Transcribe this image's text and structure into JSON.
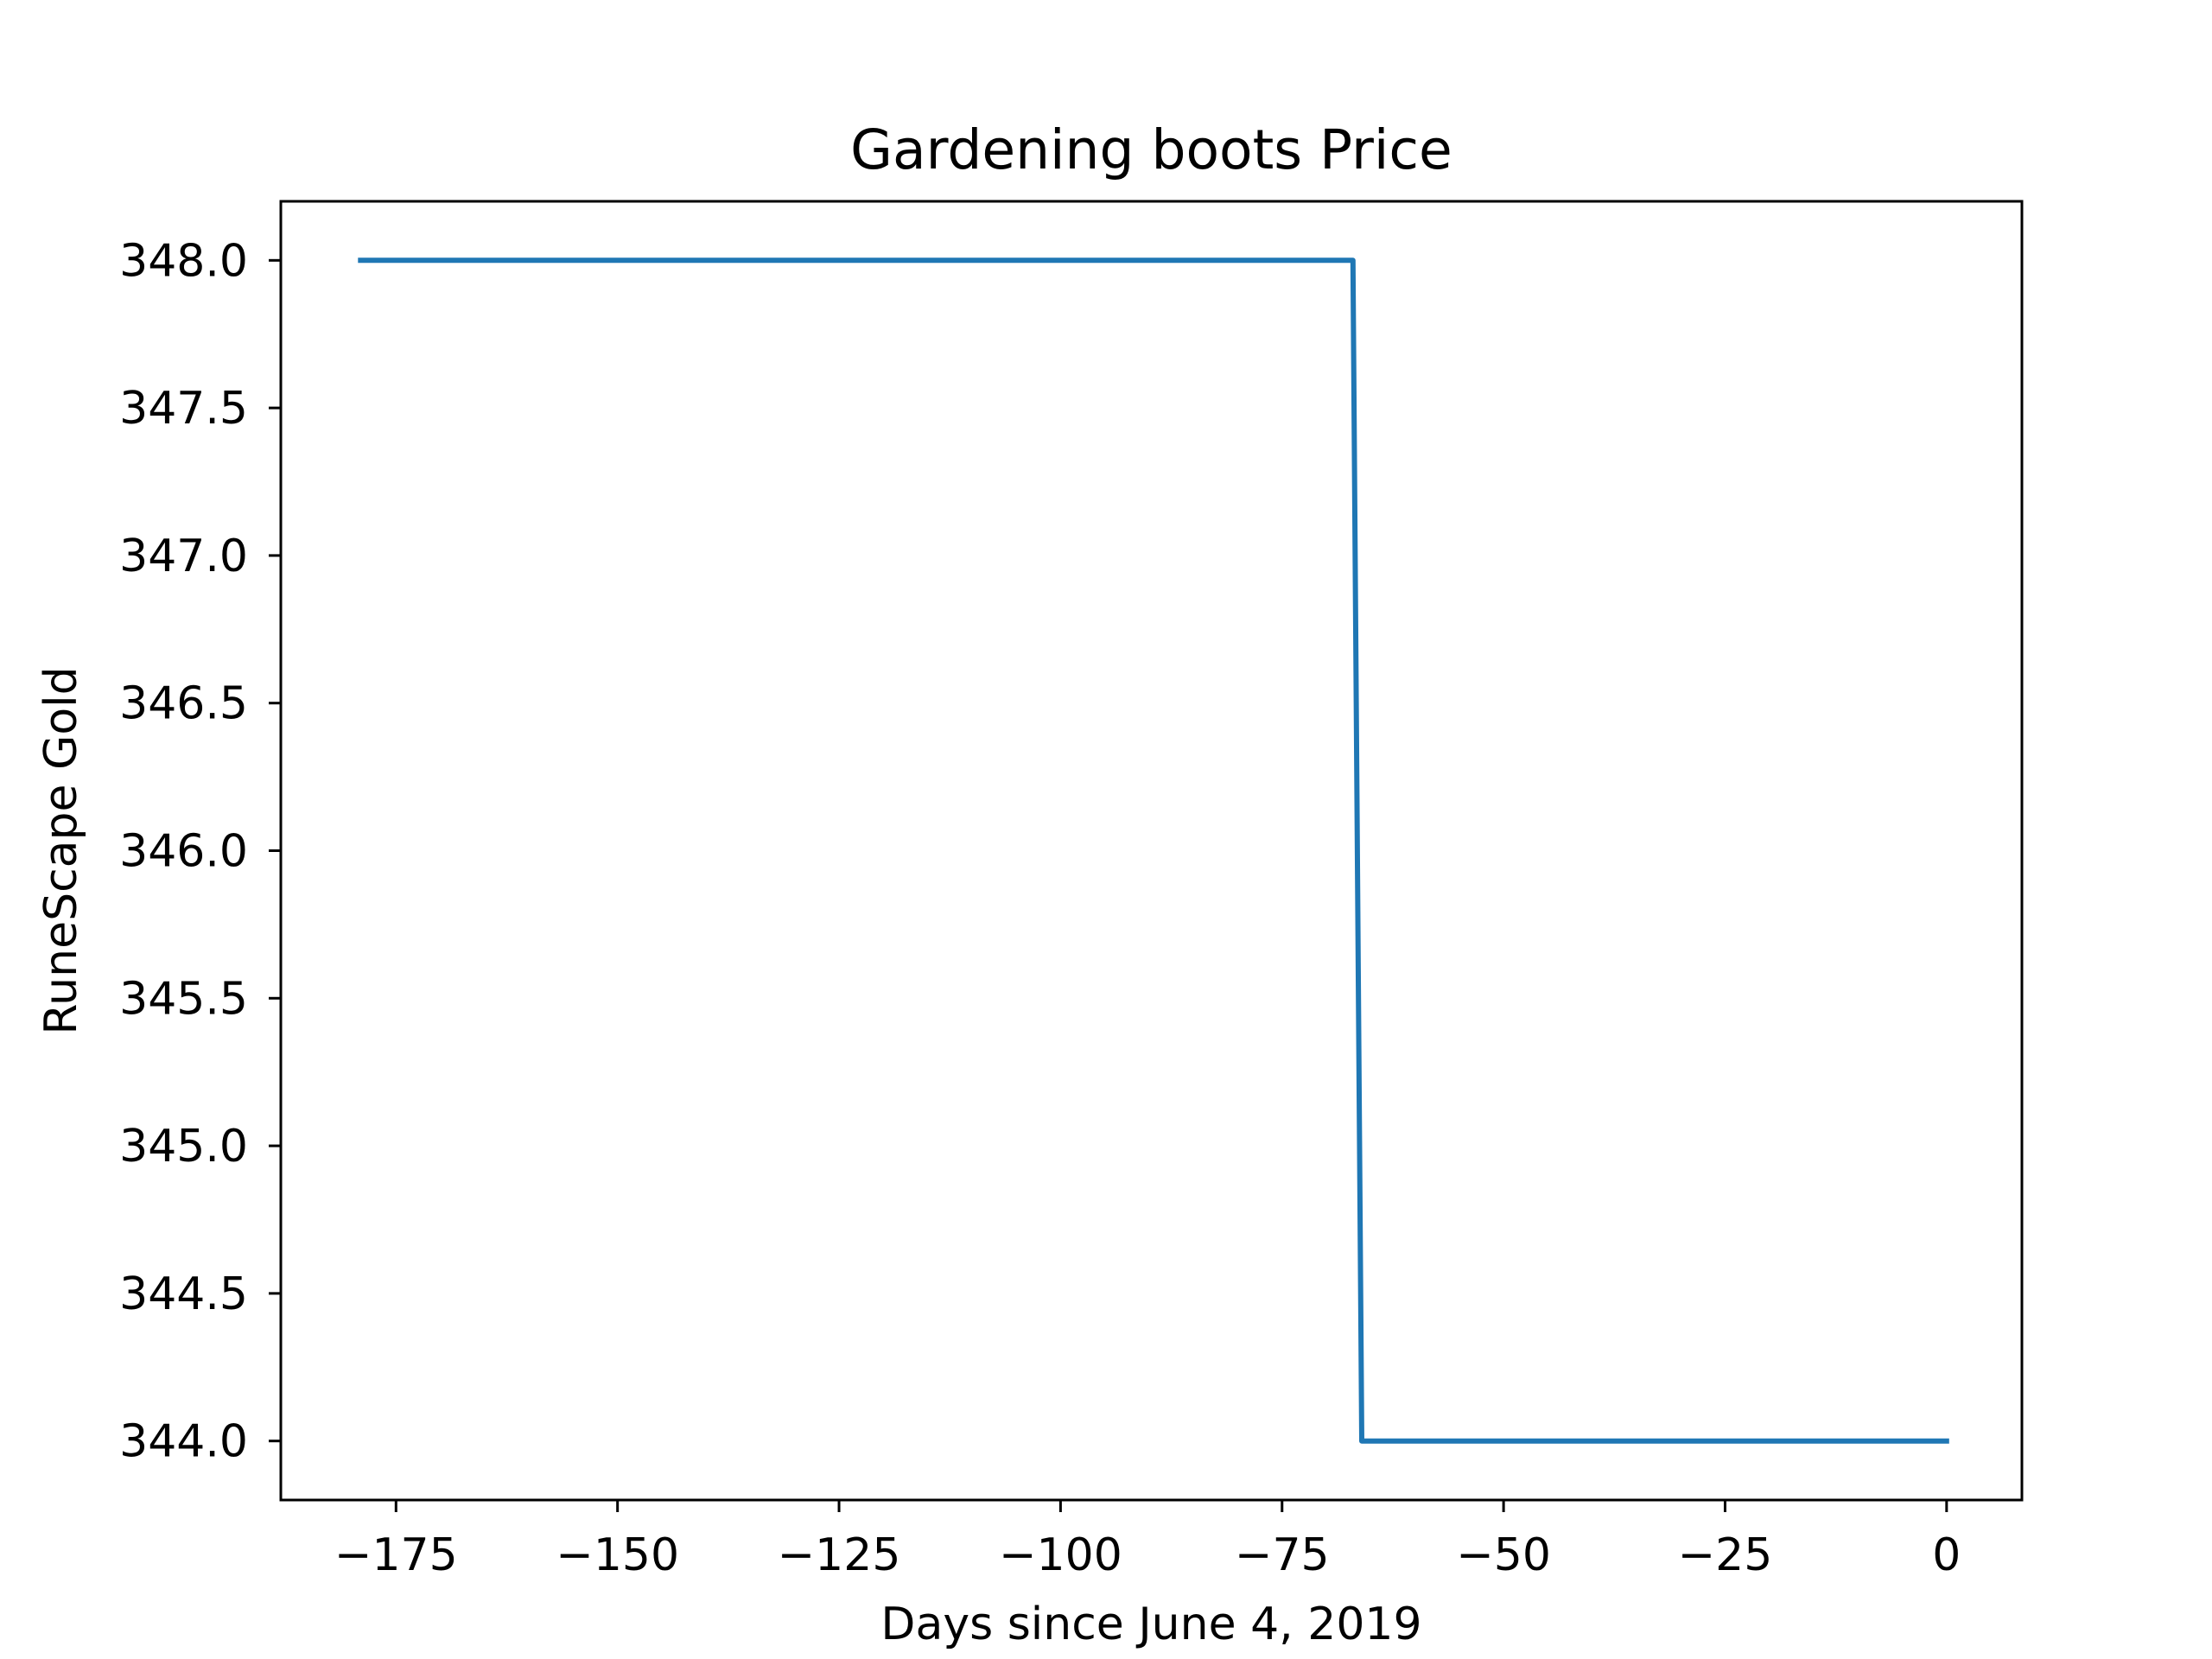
{
  "chart_data": {
    "type": "line",
    "title": "Gardening boots Price",
    "xlabel": "Days since June 4, 2019",
    "ylabel": "RuneScape Gold",
    "xlim": [
      -188,
      8.5
    ],
    "ylim": [
      343.8,
      348.2
    ],
    "xticks": [
      -175,
      -150,
      -125,
      -100,
      -75,
      -50,
      -25,
      0
    ],
    "xtick_labels": [
      "−175",
      "−150",
      "−125",
      "−100",
      "−75",
      "−50",
      "−25",
      "0"
    ],
    "yticks": [
      344.0,
      344.5,
      345.0,
      345.5,
      346.0,
      346.5,
      347.0,
      347.5,
      348.0
    ],
    "ytick_labels": [
      "344.0",
      "344.5",
      "345.0",
      "345.5",
      "346.0",
      "346.5",
      "347.0",
      "347.5",
      "348.0"
    ],
    "grid": false,
    "legend": "none",
    "series": [
      {
        "color": "#1f77b4",
        "points": [
          {
            "x": -179,
            "y": 348.0
          },
          {
            "x": -67,
            "y": 348.0
          },
          {
            "x": -66,
            "y": 344.0
          },
          {
            "x": 0,
            "y": 344.0
          }
        ]
      }
    ]
  }
}
